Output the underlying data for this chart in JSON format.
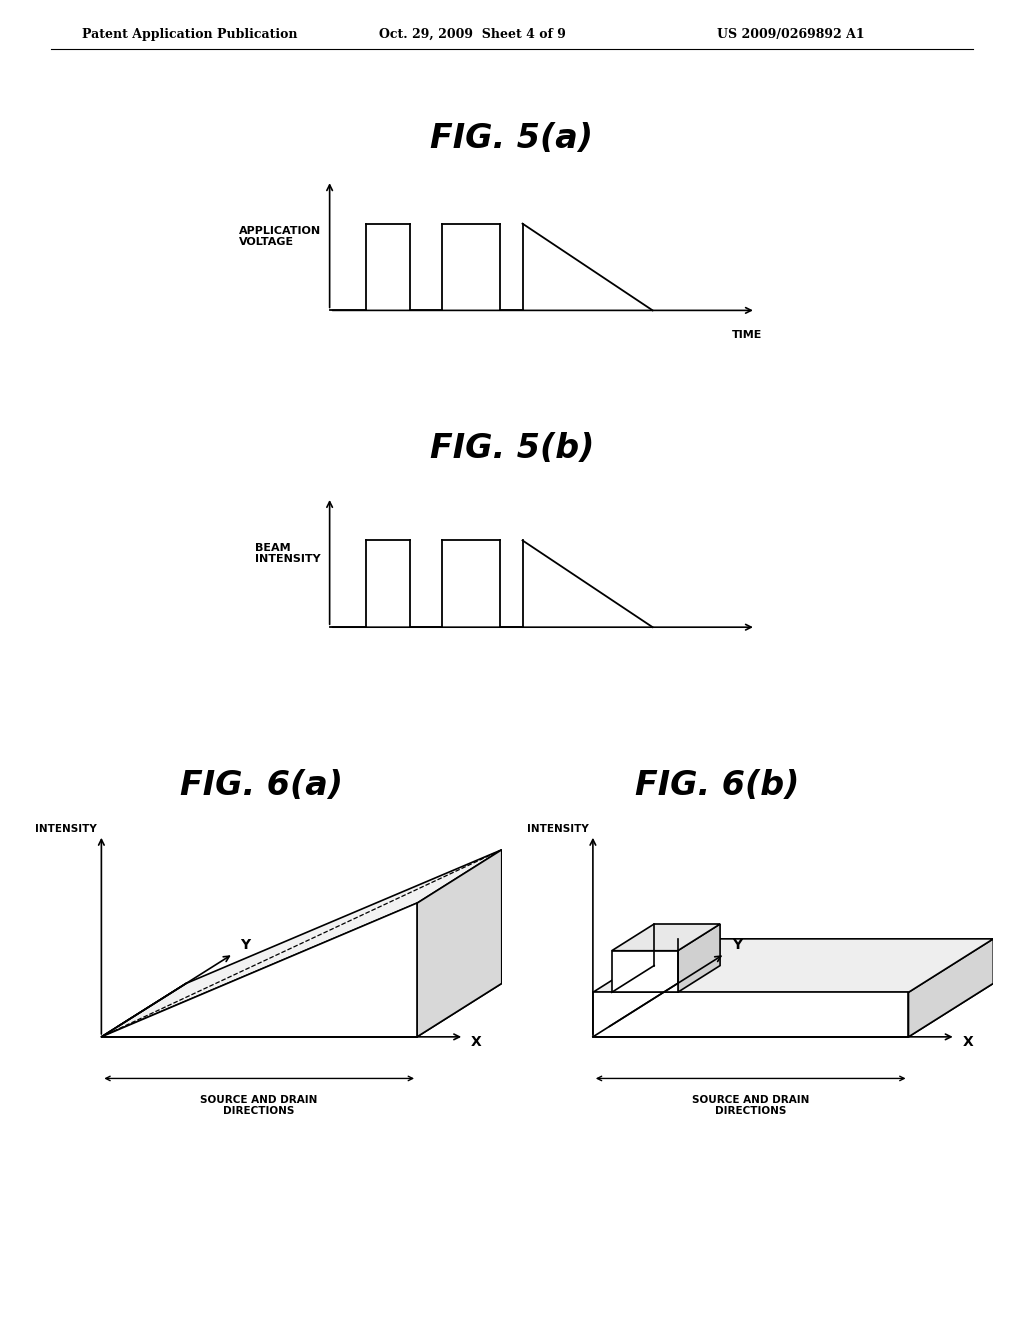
{
  "background_color": "#ffffff",
  "header_left": "Patent Application Publication",
  "header_center": "Oct. 29, 2009  Sheet 4 of 9",
  "header_right": "US 2009/0269892 A1",
  "fig5a_title": "FIG. 5(a)",
  "fig5b_title": "FIG. 5(b)",
  "fig6a_title": "FIG. 6(a)",
  "fig6b_title": "FIG. 6(b)",
  "fig5a_ylabel": "APPLICATION\nVOLTAGE",
  "fig5b_ylabel": "BEAM\nINTENSITY",
  "fig5a_xlabel": "TIME",
  "fig6_ylabel": "INTENSITY",
  "fig6_source_drain": "SOURCE AND DRAIN\nDIRECTIONS",
  "line_color": "#000000",
  "text_color": "#000000"
}
